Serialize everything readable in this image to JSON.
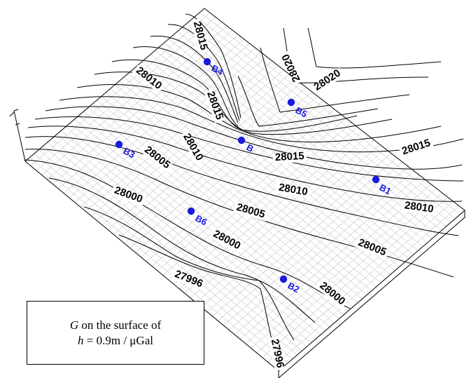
{
  "legend": {
    "line1_var": "G",
    "line1_text": " on the surface of",
    "line2_var": "h",
    "line2_text": " = 0.9m / μGal"
  },
  "contour_labels": [
    {
      "id": "28015-top",
      "text": "28015"
    },
    {
      "id": "28020-rot",
      "text": "28020"
    },
    {
      "id": "28020",
      "text": "28020"
    },
    {
      "id": "28010-left",
      "text": "28010"
    },
    {
      "id": "28015-mid",
      "text": "28015"
    },
    {
      "id": "28010-center",
      "text": "28010"
    },
    {
      "id": "28005-left",
      "text": "28005"
    },
    {
      "id": "28015-lower",
      "text": "28015"
    },
    {
      "id": "28015-right",
      "text": "28015"
    },
    {
      "id": "28010-lower",
      "text": "28010"
    },
    {
      "id": "28000-left",
      "text": "28000"
    },
    {
      "id": "28010-right",
      "text": "28010"
    },
    {
      "id": "28005-center",
      "text": "28005"
    },
    {
      "id": "28000-center",
      "text": "28000"
    },
    {
      "id": "28005-right",
      "text": "28005"
    },
    {
      "id": "27996-left",
      "text": "27996"
    },
    {
      "id": "28000-right",
      "text": "28000"
    },
    {
      "id": "27996-bottom",
      "text": "27996"
    }
  ],
  "stations": [
    {
      "id": "B4",
      "label": "B4"
    },
    {
      "id": "B5",
      "label": "B5"
    },
    {
      "id": "B",
      "label": "B"
    },
    {
      "id": "B3",
      "label": "B3"
    },
    {
      "id": "B1",
      "label": "B1"
    },
    {
      "id": "B6",
      "label": "B6"
    },
    {
      "id": "B2",
      "label": "B2"
    }
  ],
  "colors": {
    "station": "#1a1adf",
    "contour": "#000000",
    "grid": "#c8c8c8",
    "frame": "#000000"
  }
}
